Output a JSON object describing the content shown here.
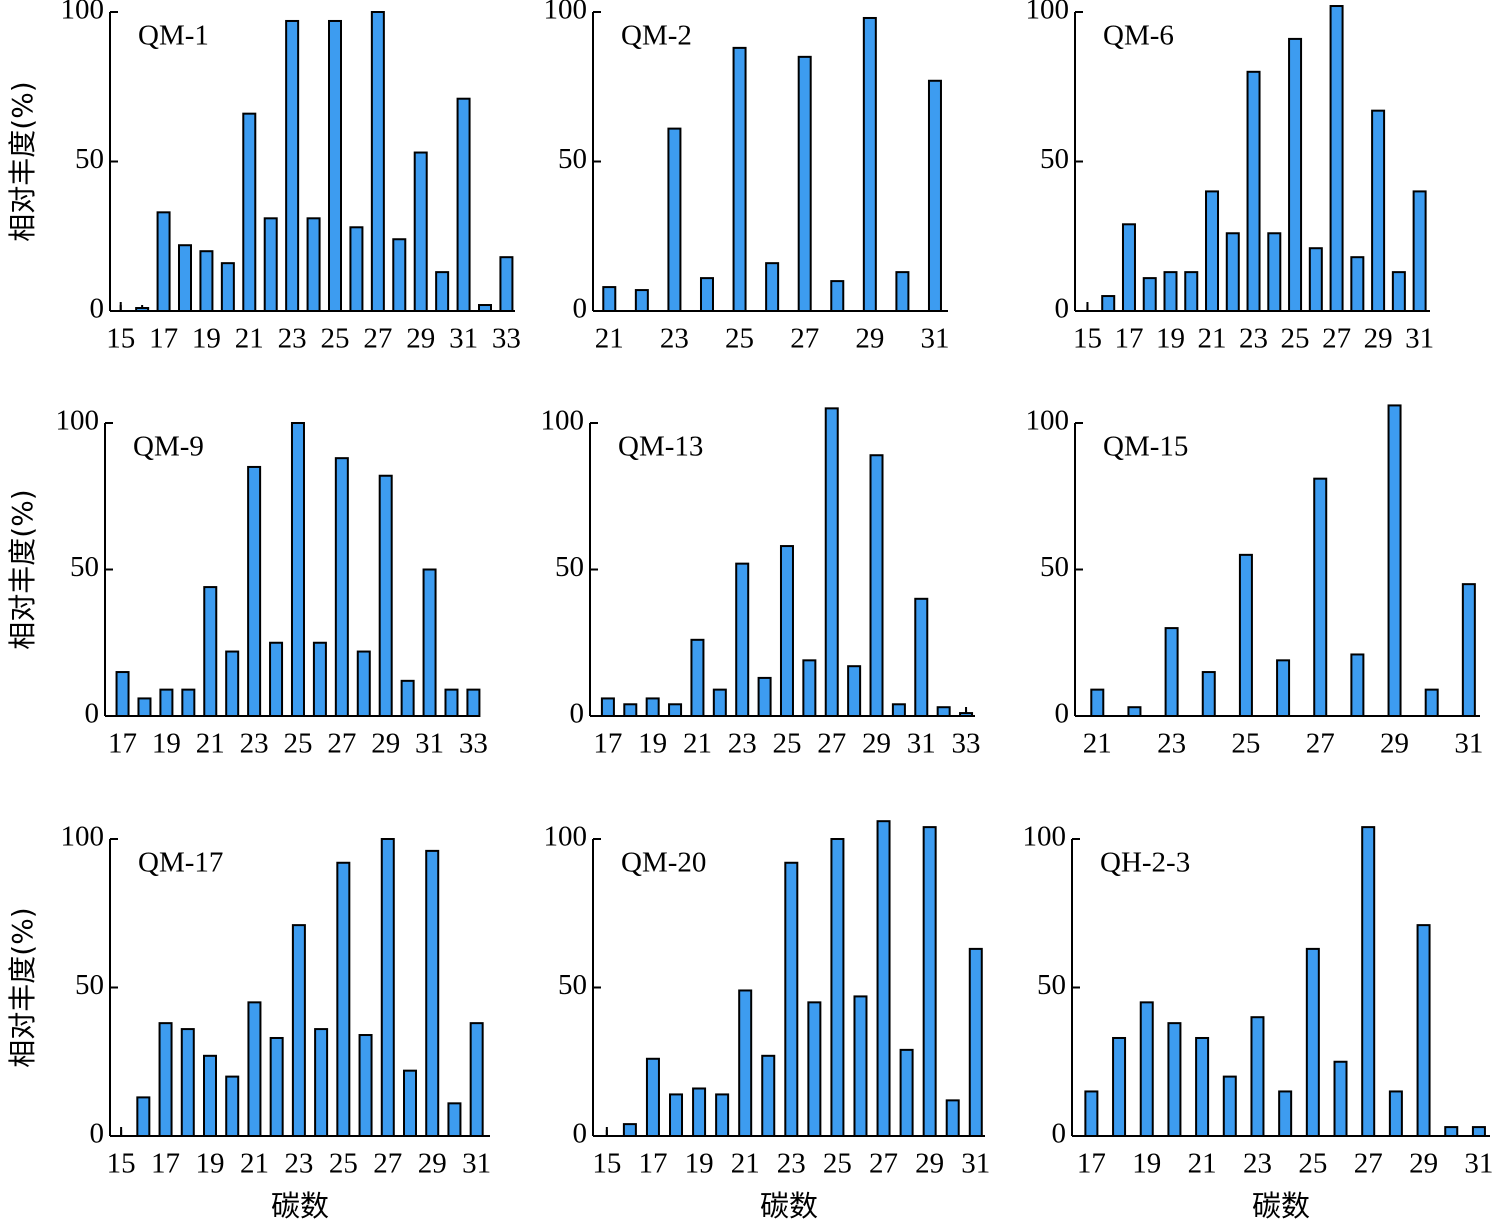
{
  "chart_data": [
    {
      "type": "bar",
      "title": "QM-1",
      "ylabel": "相对丰度(%)",
      "color": "#3d9cf0",
      "x": [
        16,
        17,
        18,
        19,
        20,
        21,
        22,
        23,
        24,
        25,
        26,
        27,
        28,
        29,
        30,
        31,
        32,
        33
      ],
      "values": [
        1,
        33,
        22,
        20,
        16,
        66,
        31,
        97,
        31,
        97,
        28,
        100,
        24,
        53,
        13,
        71,
        2,
        18
      ],
      "xlim": [
        14.5,
        33.4
      ],
      "xticks": [
        15,
        17,
        19,
        21,
        23,
        25,
        27,
        29,
        31,
        33
      ],
      "ylim": [
        0,
        100
      ],
      "yticks": [
        0,
        50,
        100
      ]
    },
    {
      "type": "bar",
      "title": "QM-2",
      "color": "#3d9cf0",
      "x": [
        21,
        22,
        23,
        24,
        25,
        26,
        27,
        28,
        29,
        30,
        31
      ],
      "values": [
        8,
        7,
        61,
        11,
        88,
        16,
        85,
        10,
        98,
        13,
        77
      ],
      "xlim": [
        20.5,
        31.4
      ],
      "xticks": [
        21,
        23,
        25,
        27,
        29,
        31
      ],
      "ylim": [
        0,
        100
      ],
      "yticks": [
        0,
        50,
        100
      ]
    },
    {
      "type": "bar",
      "title": "QM-6",
      "color": "#3d9cf0",
      "x": [
        16,
        17,
        18,
        19,
        20,
        21,
        22,
        23,
        24,
        25,
        26,
        27,
        28,
        29,
        30,
        31
      ],
      "values": [
        5,
        29,
        11,
        13,
        13,
        40,
        26,
        80,
        26,
        91,
        21,
        102,
        18,
        67,
        13,
        40
      ],
      "xlim": [
        14.4,
        31.5
      ],
      "xticks": [
        15,
        17,
        19,
        21,
        23,
        25,
        27,
        29,
        31
      ],
      "ylim": [
        0,
        100
      ],
      "yticks": [
        0,
        50,
        100
      ]
    },
    {
      "type": "bar",
      "title": "QM-9",
      "ylabel": "相对丰度(%)",
      "color": "#3d9cf0",
      "x": [
        17,
        18,
        19,
        20,
        21,
        22,
        23,
        24,
        25,
        26,
        27,
        28,
        29,
        30,
        31,
        32,
        33
      ],
      "values": [
        15,
        6,
        9,
        9,
        44,
        22,
        85,
        25,
        100,
        25,
        88,
        22,
        82,
        12,
        50,
        9,
        9
      ],
      "xlim": [
        16.2,
        33.3
      ],
      "xticks": [
        17,
        19,
        21,
        23,
        25,
        27,
        29,
        31,
        33
      ],
      "ylim": [
        0,
        100
      ],
      "yticks": [
        0,
        50,
        100
      ]
    },
    {
      "type": "bar",
      "title": "QM-13",
      "color": "#3d9cf0",
      "x": [
        17,
        18,
        19,
        20,
        21,
        22,
        23,
        24,
        25,
        26,
        27,
        28,
        29,
        30,
        31,
        32,
        33
      ],
      "values": [
        6,
        4,
        6,
        4,
        26,
        9,
        52,
        13,
        58,
        19,
        105,
        17,
        89,
        4,
        40,
        3,
        1
      ],
      "xlim": [
        16.2,
        33.4
      ],
      "xticks": [
        17,
        19,
        21,
        23,
        25,
        27,
        29,
        31,
        33
      ],
      "ylim": [
        0,
        100
      ],
      "yticks": [
        0,
        50,
        100
      ]
    },
    {
      "type": "bar",
      "title": "QM-15",
      "color": "#3d9cf0",
      "x": [
        21,
        22,
        23,
        24,
        25,
        26,
        27,
        28,
        29,
        30,
        31
      ],
      "values": [
        9,
        3,
        30,
        15,
        55,
        19,
        81,
        21,
        106,
        9,
        45
      ],
      "xlim": [
        20.4,
        31.3
      ],
      "xticks": [
        21,
        23,
        25,
        27,
        29,
        31
      ],
      "ylim": [
        0,
        100
      ],
      "yticks": [
        0,
        50,
        100
      ]
    },
    {
      "type": "bar",
      "title": "QM-17",
      "ylabel": "相对丰度(%)",
      "xlabel": "碳数",
      "color": "#3d9cf0",
      "x": [
        16,
        17,
        18,
        19,
        20,
        21,
        22,
        23,
        24,
        25,
        26,
        27,
        28,
        29,
        30,
        31
      ],
      "values": [
        13,
        38,
        36,
        27,
        20,
        45,
        33,
        71,
        36,
        92,
        34,
        100,
        22,
        96,
        11,
        38
      ],
      "xlim": [
        14.5,
        31.6
      ],
      "xticks": [
        15,
        17,
        19,
        21,
        23,
        25,
        27,
        29,
        31
      ],
      "ylim": [
        0,
        100
      ],
      "yticks": [
        0,
        50,
        100
      ]
    },
    {
      "type": "bar",
      "title": "QM-20",
      "xlabel": "碳数",
      "color": "#3d9cf0",
      "x": [
        16,
        17,
        18,
        19,
        20,
        21,
        22,
        23,
        24,
        25,
        26,
        27,
        28,
        29,
        30,
        31
      ],
      "values": [
        4,
        26,
        14,
        16,
        14,
        49,
        27,
        92,
        45,
        100,
        47,
        106,
        29,
        104,
        12,
        63
      ],
      "xlim": [
        14.4,
        31.4
      ],
      "xticks": [
        15,
        17,
        19,
        21,
        23,
        25,
        27,
        29,
        31
      ],
      "ylim": [
        0,
        100
      ],
      "yticks": [
        0,
        50,
        100
      ]
    },
    {
      "type": "bar",
      "title": "QH-2-3",
      "xlabel": "碳数",
      "color": "#3d9cf0",
      "x": [
        17,
        18,
        19,
        20,
        21,
        22,
        23,
        24,
        25,
        26,
        27,
        28,
        29,
        30,
        31
      ],
      "values": [
        15,
        33,
        45,
        38,
        33,
        20,
        40,
        15,
        63,
        25,
        104,
        15,
        71,
        3,
        3
      ],
      "xlim": [
        16.3,
        31.4
      ],
      "xticks": [
        17,
        19,
        21,
        23,
        25,
        27,
        29,
        31
      ],
      "ylim": [
        0,
        100
      ],
      "yticks": [
        0,
        50,
        100
      ]
    }
  ]
}
